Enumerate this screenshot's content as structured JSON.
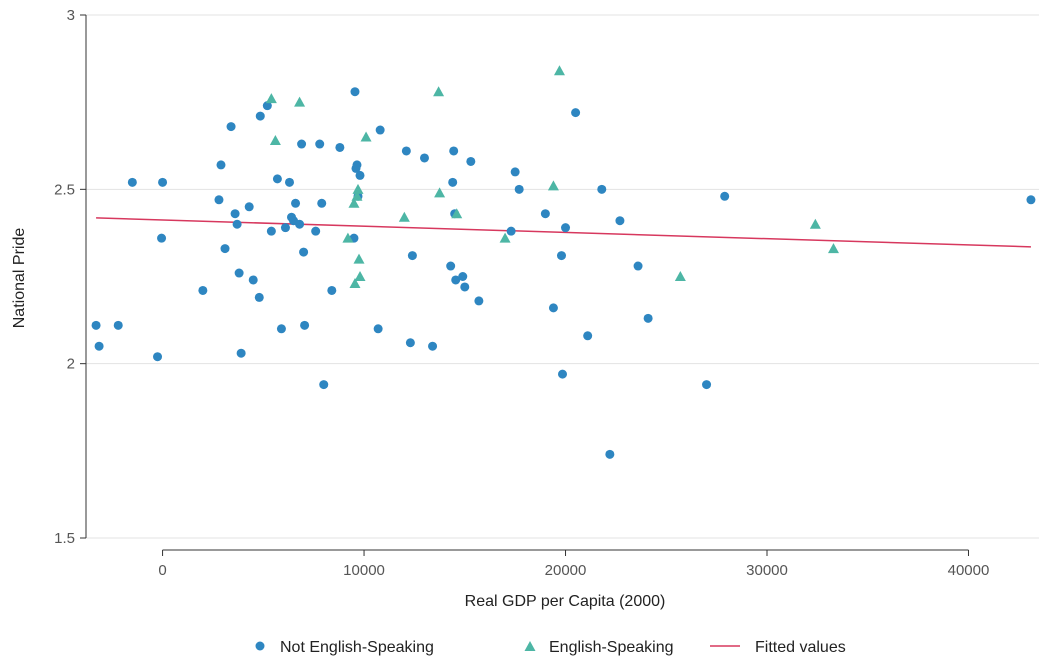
{
  "chart_data": {
    "type": "scatter",
    "xlabel": "Real GDP per Capita (2000)",
    "ylabel": "National Pride",
    "xlim": [
      -3800,
      43500
    ],
    "ylim": [
      1.5,
      3.0
    ],
    "x_ticks": [
      0,
      10000,
      20000,
      30000,
      40000
    ],
    "x_tick_labels": [
      "0",
      "10000",
      "20000",
      "30000",
      "40000"
    ],
    "y_ticks": [
      1.5,
      2,
      2.5,
      3
    ],
    "y_tick_labels": [
      "1.5",
      "2",
      "2.5",
      "3"
    ],
    "grid": "horizontal",
    "legend_position": "bottom",
    "series": [
      {
        "name": "Not English-Speaking",
        "marker": "circle",
        "color": "#2e86c1",
        "points": [
          [
            -3300,
            2.11
          ],
          [
            -3150,
            2.05
          ],
          [
            -2200,
            2.11
          ],
          [
            -1500,
            2.52
          ],
          [
            -250,
            2.02
          ],
          [
            -50,
            2.36
          ],
          [
            0,
            2.52
          ],
          [
            2000,
            2.21
          ],
          [
            2800,
            2.47
          ],
          [
            2900,
            2.57
          ],
          [
            3100,
            2.33
          ],
          [
            3400,
            2.68
          ],
          [
            3600,
            2.43
          ],
          [
            3700,
            2.4
          ],
          [
            3800,
            2.26
          ],
          [
            3900,
            2.03
          ],
          [
            4300,
            2.45
          ],
          [
            4500,
            2.24
          ],
          [
            4800,
            2.19
          ],
          [
            4850,
            2.71
          ],
          [
            5200,
            2.74
          ],
          [
            5400,
            2.38
          ],
          [
            5700,
            2.53
          ],
          [
            5900,
            2.1
          ],
          [
            6100,
            2.39
          ],
          [
            6300,
            2.52
          ],
          [
            6400,
            2.42
          ],
          [
            6500,
            2.41
          ],
          [
            6600,
            2.46
          ],
          [
            6800,
            2.4
          ],
          [
            6900,
            2.63
          ],
          [
            7000,
            2.32
          ],
          [
            7050,
            2.11
          ],
          [
            7600,
            2.38
          ],
          [
            7800,
            2.63
          ],
          [
            7900,
            2.46
          ],
          [
            8000,
            1.94
          ],
          [
            8400,
            2.21
          ],
          [
            8800,
            2.62
          ],
          [
            9500,
            2.36
          ],
          [
            9550,
            2.78
          ],
          [
            9600,
            2.56
          ],
          [
            9650,
            2.57
          ],
          [
            9700,
            2.48
          ],
          [
            9800,
            2.54
          ],
          [
            10700,
            2.1
          ],
          [
            10800,
            2.67
          ],
          [
            12100,
            2.61
          ],
          [
            12300,
            2.06
          ],
          [
            12400,
            2.31
          ],
          [
            13000,
            2.59
          ],
          [
            13400,
            2.05
          ],
          [
            14300,
            2.28
          ],
          [
            14400,
            2.52
          ],
          [
            14450,
            2.61
          ],
          [
            14500,
            2.43
          ],
          [
            14550,
            2.24
          ],
          [
            14900,
            2.25
          ],
          [
            15000,
            2.22
          ],
          [
            15300,
            2.58
          ],
          [
            15700,
            2.18
          ],
          [
            17300,
            2.38
          ],
          [
            17500,
            2.55
          ],
          [
            17700,
            2.5
          ],
          [
            19000,
            2.43
          ],
          [
            19400,
            2.16
          ],
          [
            19800,
            2.31
          ],
          [
            19850,
            1.97
          ],
          [
            20000,
            2.39
          ],
          [
            20500,
            2.72
          ],
          [
            21100,
            2.08
          ],
          [
            21800,
            2.5
          ],
          [
            22200,
            1.74
          ],
          [
            22700,
            2.41
          ],
          [
            23600,
            2.28
          ],
          [
            24100,
            2.13
          ],
          [
            27000,
            1.94
          ],
          [
            27900,
            2.48
          ],
          [
            43100,
            2.47
          ]
        ]
      },
      {
        "name": "English-Speaking",
        "marker": "triangle",
        "color": "#4db6a5",
        "points": [
          [
            5400,
            2.76
          ],
          [
            5600,
            2.64
          ],
          [
            6800,
            2.75
          ],
          [
            9200,
            2.36
          ],
          [
            9500,
            2.46
          ],
          [
            9550,
            2.23
          ],
          [
            9650,
            2.48
          ],
          [
            9700,
            2.5
          ],
          [
            9750,
            2.3
          ],
          [
            9800,
            2.25
          ],
          [
            10100,
            2.65
          ],
          [
            12000,
            2.42
          ],
          [
            13700,
            2.78
          ],
          [
            13750,
            2.49
          ],
          [
            14600,
            2.43
          ],
          [
            17000,
            2.36
          ],
          [
            19400,
            2.51
          ],
          [
            19700,
            2.84
          ],
          [
            25700,
            2.25
          ],
          [
            32400,
            2.4
          ],
          [
            33300,
            2.33
          ]
        ]
      },
      {
        "name": "Fitted values",
        "type": "line",
        "color": "#d7385e",
        "points": [
          [
            -3300,
            2.418
          ],
          [
            43100,
            2.335
          ]
        ]
      }
    ]
  }
}
